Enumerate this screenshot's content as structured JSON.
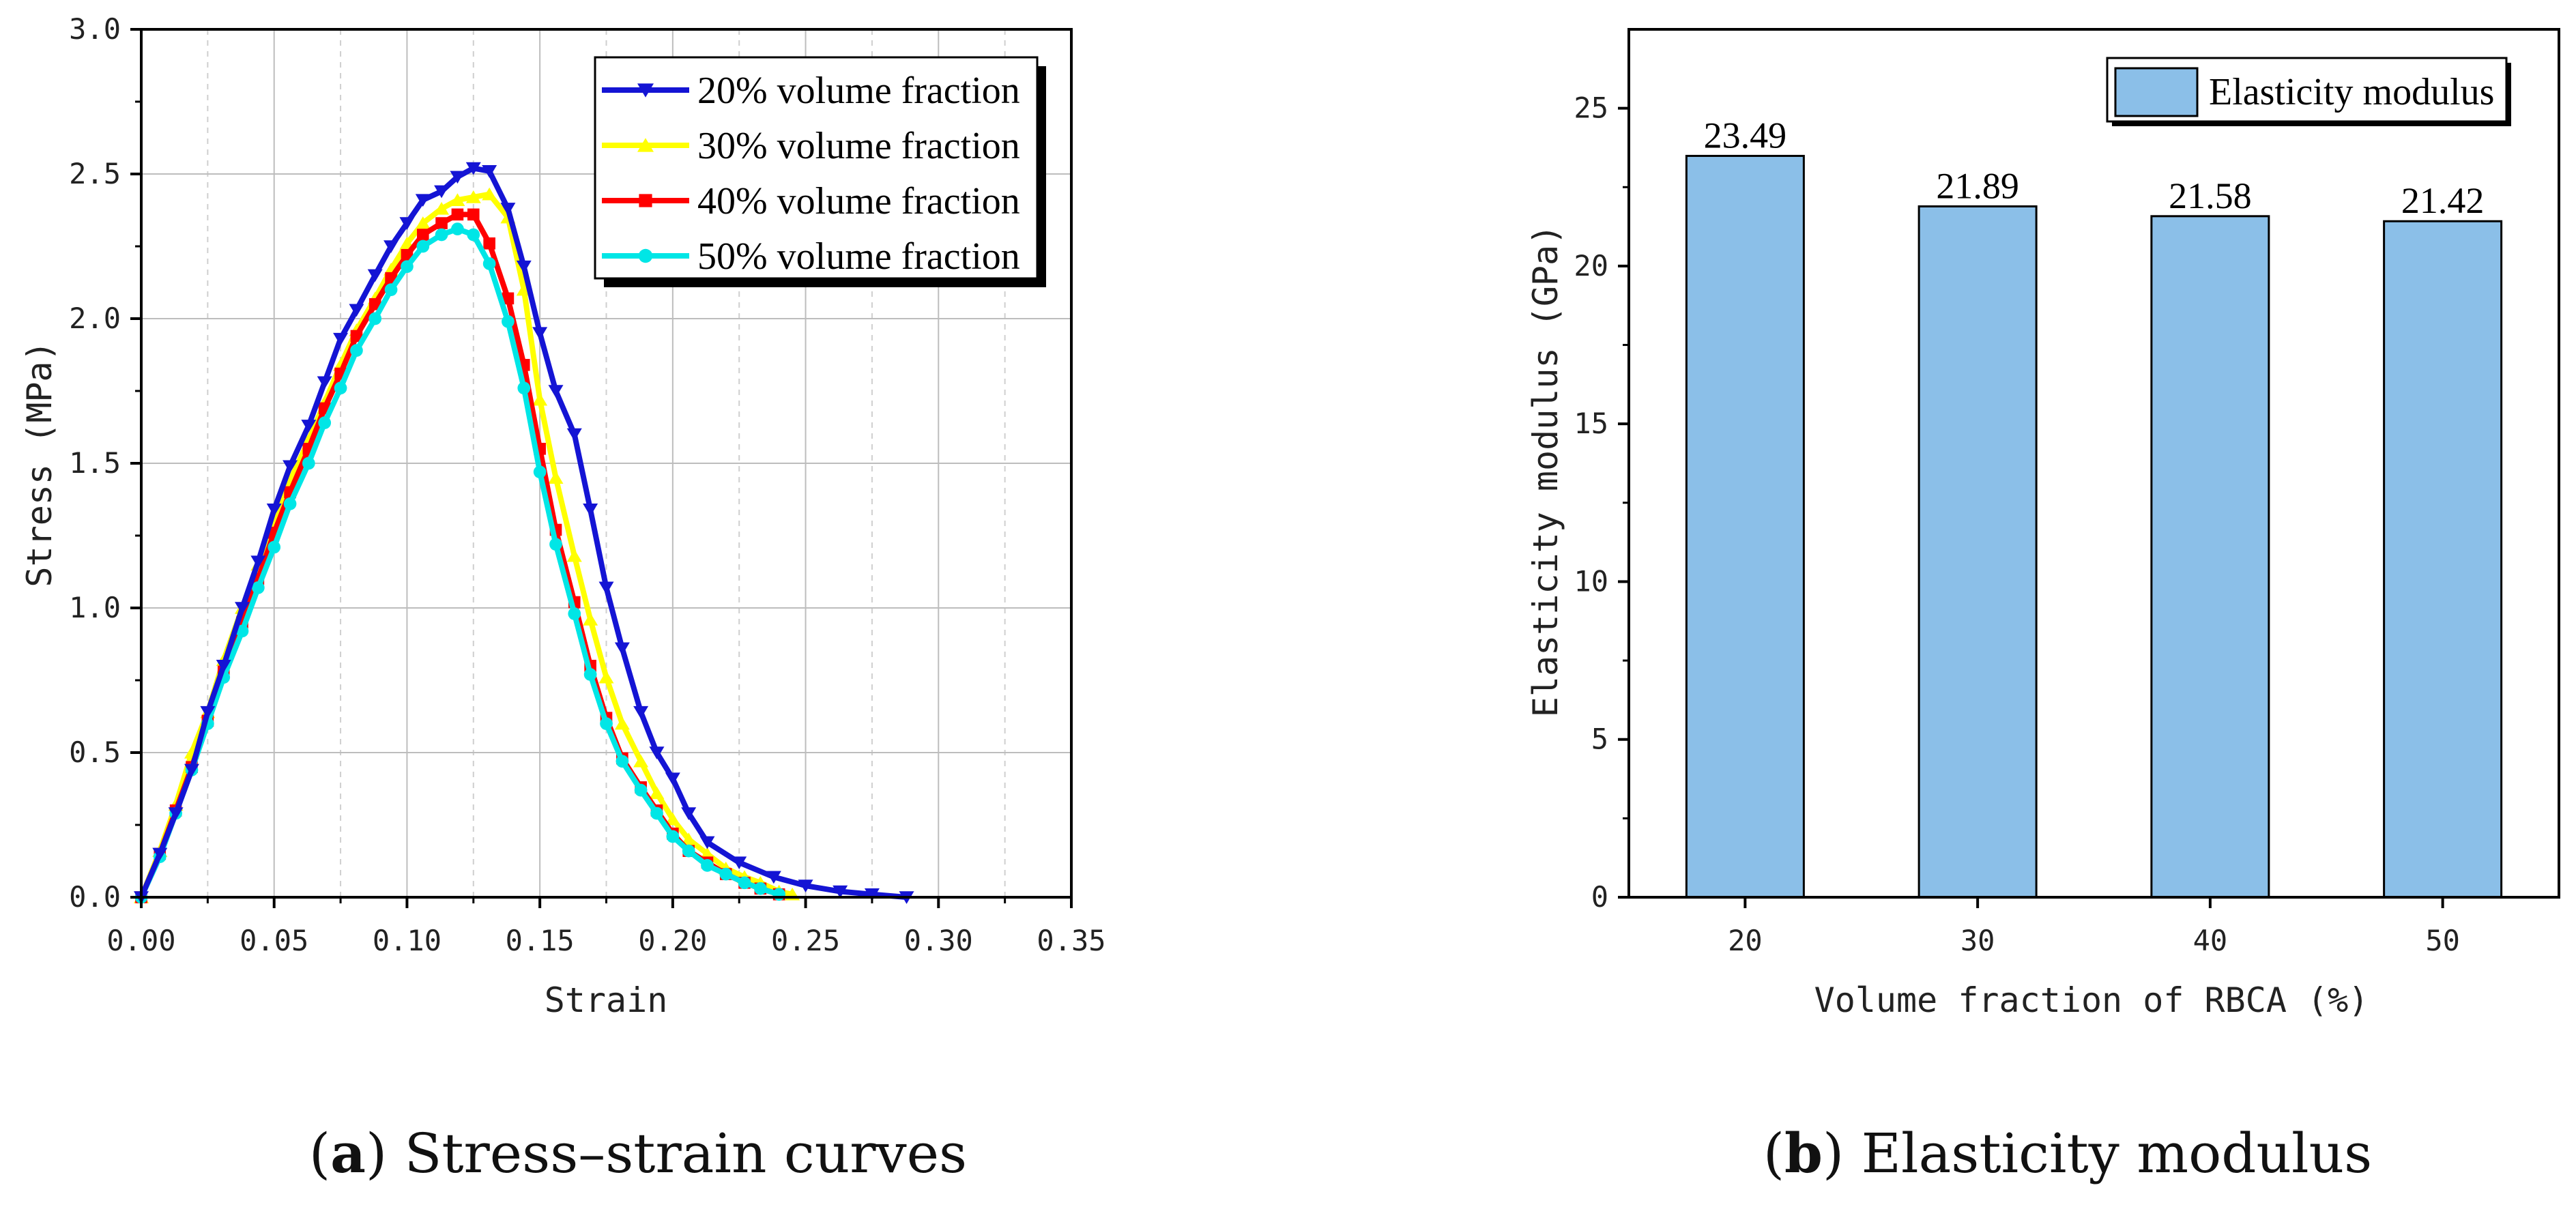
{
  "chart_data": [
    {
      "id": "a",
      "type": "line",
      "xlabel": "Strain",
      "ylabel": "Stress (MPa)",
      "xlim": [
        0,
        0.35
      ],
      "ylim": [
        0,
        3.0
      ],
      "xticks": [
        "0.00",
        "0.05",
        "0.10",
        "0.15",
        "0.20",
        "0.25",
        "0.30",
        "0.35"
      ],
      "yticks": [
        "0.0",
        "0.5",
        "1.0",
        "1.5",
        "2.0",
        "2.5",
        "3.0"
      ],
      "grid": true,
      "legend_position": "top-right",
      "series": [
        {
          "name": "20% volume fraction",
          "color": "#1414d4",
          "marker": "triangle-down",
          "x": [
            0,
            0.007,
            0.013,
            0.019,
            0.025,
            0.031,
            0.038,
            0.044,
            0.05,
            0.056,
            0.063,
            0.069,
            0.075,
            0.081,
            0.088,
            0.094,
            0.1,
            0.106,
            0.113,
            0.119,
            0.125,
            0.131,
            0.138,
            0.144,
            0.15,
            0.156,
            0.163,
            0.169,
            0.175,
            0.181,
            0.188,
            0.194,
            0.2,
            0.206,
            0.213,
            0.225,
            0.238,
            0.25,
            0.263,
            0.275,
            0.288
          ],
          "y": [
            0,
            0.15,
            0.29,
            0.44,
            0.64,
            0.8,
            1.0,
            1.16,
            1.34,
            1.49,
            1.63,
            1.78,
            1.93,
            2.03,
            2.15,
            2.25,
            2.33,
            2.41,
            2.44,
            2.49,
            2.52,
            2.51,
            2.38,
            2.18,
            1.95,
            1.75,
            1.6,
            1.34,
            1.07,
            0.86,
            0.64,
            0.5,
            0.41,
            0.29,
            0.19,
            0.12,
            0.07,
            0.04,
            0.02,
            0.01,
            0.0
          ]
        },
        {
          "name": "30% volume fraction",
          "color": "#ffff00",
          "marker": "triangle-up",
          "x": [
            0,
            0.007,
            0.013,
            0.019,
            0.025,
            0.031,
            0.038,
            0.044,
            0.05,
            0.056,
            0.063,
            0.069,
            0.075,
            0.081,
            0.088,
            0.094,
            0.1,
            0.106,
            0.113,
            0.119,
            0.125,
            0.131,
            0.138,
            0.144,
            0.15,
            0.156,
            0.163,
            0.169,
            0.175,
            0.181,
            0.188,
            0.194,
            0.2,
            0.206,
            0.213,
            0.22,
            0.227,
            0.233,
            0.24,
            0.245
          ],
          "y": [
            0,
            0.16,
            0.32,
            0.5,
            0.64,
            0.82,
            1.0,
            1.15,
            1.3,
            1.44,
            1.58,
            1.71,
            1.84,
            1.96,
            2.07,
            2.17,
            2.26,
            2.33,
            2.38,
            2.41,
            2.42,
            2.43,
            2.35,
            2.1,
            1.72,
            1.45,
            1.18,
            0.96,
            0.76,
            0.6,
            0.47,
            0.36,
            0.27,
            0.2,
            0.15,
            0.1,
            0.07,
            0.05,
            0.02,
            0.01
          ]
        },
        {
          "name": "40% volume fraction",
          "color": "#ff0000",
          "marker": "square",
          "x": [
            0,
            0.007,
            0.013,
            0.019,
            0.025,
            0.031,
            0.038,
            0.044,
            0.05,
            0.056,
            0.063,
            0.069,
            0.075,
            0.081,
            0.088,
            0.094,
            0.1,
            0.106,
            0.113,
            0.119,
            0.125,
            0.131,
            0.138,
            0.144,
            0.15,
            0.156,
            0.163,
            0.169,
            0.175,
            0.181,
            0.188,
            0.194,
            0.2,
            0.206,
            0.213,
            0.22,
            0.227,
            0.233,
            0.24
          ],
          "y": [
            0,
            0.15,
            0.3,
            0.45,
            0.61,
            0.78,
            0.95,
            1.1,
            1.26,
            1.4,
            1.55,
            1.69,
            1.81,
            1.94,
            2.05,
            2.14,
            2.22,
            2.29,
            2.33,
            2.36,
            2.36,
            2.26,
            2.07,
            1.84,
            1.55,
            1.27,
            1.02,
            0.8,
            0.62,
            0.48,
            0.38,
            0.3,
            0.22,
            0.16,
            0.12,
            0.08,
            0.05,
            0.03,
            0.01
          ]
        },
        {
          "name": "50% volume fraction",
          "color": "#00e6e6",
          "marker": "circle",
          "x": [
            0,
            0.007,
            0.013,
            0.019,
            0.025,
            0.031,
            0.038,
            0.044,
            0.05,
            0.056,
            0.063,
            0.069,
            0.075,
            0.081,
            0.088,
            0.094,
            0.1,
            0.106,
            0.113,
            0.119,
            0.125,
            0.131,
            0.138,
            0.144,
            0.15,
            0.156,
            0.163,
            0.169,
            0.175,
            0.181,
            0.188,
            0.194,
            0.2,
            0.206,
            0.213,
            0.22,
            0.227,
            0.233,
            0.24
          ],
          "y": [
            0,
            0.14,
            0.29,
            0.44,
            0.6,
            0.76,
            0.92,
            1.07,
            1.21,
            1.36,
            1.5,
            1.64,
            1.76,
            1.89,
            2.0,
            2.1,
            2.18,
            2.25,
            2.29,
            2.31,
            2.29,
            2.19,
            1.99,
            1.76,
            1.47,
            1.22,
            0.98,
            0.77,
            0.6,
            0.47,
            0.37,
            0.29,
            0.21,
            0.16,
            0.11,
            0.08,
            0.05,
            0.03,
            0.01
          ]
        }
      ]
    },
    {
      "id": "b",
      "type": "bar",
      "xlabel": "Volume fraction of RBCA (%)",
      "ylabel": "Elasticity modulus (GPa)",
      "ylim": [
        0,
        27.5
      ],
      "yticks": [
        "0",
        "5",
        "10",
        "15",
        "20",
        "25"
      ],
      "categories": [
        "20",
        "30",
        "40",
        "50"
      ],
      "values": [
        23.49,
        21.89,
        21.58,
        21.42
      ],
      "data_labels": [
        "23.49",
        "21.89",
        "21.58",
        "21.42"
      ],
      "bar_color": "#8bbfe8",
      "legend": [
        "Elasticity modulus"
      ],
      "legend_position": "top-right"
    }
  ],
  "captions": {
    "a_letter": "a",
    "a_text": " Stress–strain curves",
    "b_letter": "b",
    "b_text": " Elasticity modulus"
  }
}
